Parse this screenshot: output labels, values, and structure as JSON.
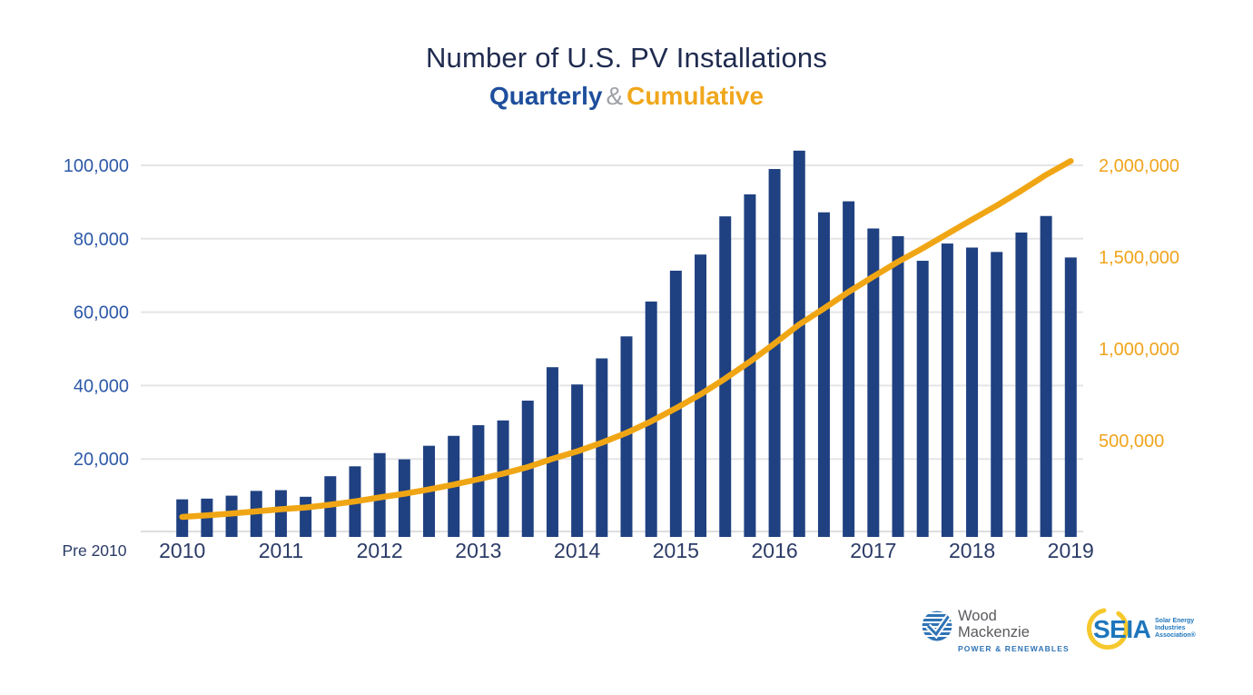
{
  "title": {
    "line1": "Number of U.S. PV Installations",
    "series1_label": "Quarterly",
    "ampersand": "&",
    "series2_label": "Cumulative"
  },
  "colors": {
    "bar": "#1F4181",
    "line": "#F0A614",
    "grid": "#E5E5E8",
    "axis_line": "#DEDEE1",
    "left_axis_text": "#2D59A8",
    "right_axis_text": "#F0A41C",
    "x_axis_text": "#2B3B66",
    "title_text": "#1F2B4F",
    "subtitle_quarterly": "#1E4E9C",
    "subtitle_amp": "#9DA0A6",
    "subtitle_cumulative": "#F0A71C",
    "background": "#FFFFFF"
  },
  "chart_data": {
    "type": "bar+line",
    "title": "Number of U.S. PV Installations",
    "subtitle": "Quarterly & Cumulative",
    "grid": "horizontal",
    "legend_position": "in-title",
    "x": [
      "2010 Q1",
      "2010 Q2",
      "2010 Q3",
      "2010 Q4",
      "2011 Q1",
      "2011 Q2",
      "2011 Q3",
      "2011 Q4",
      "2012 Q1",
      "2012 Q2",
      "2012 Q3",
      "2012 Q4",
      "2013 Q1",
      "2013 Q2",
      "2013 Q3",
      "2013 Q4",
      "2014 Q1",
      "2014 Q2",
      "2014 Q3",
      "2014 Q4",
      "2015 Q1",
      "2015 Q2",
      "2015 Q3",
      "2015 Q4",
      "2016 Q1",
      "2016 Q2",
      "2016 Q3",
      "2016 Q4",
      "2017 Q1",
      "2017 Q2",
      "2017 Q3",
      "2017 Q4",
      "2018 Q1",
      "2018 Q2",
      "2018 Q3",
      "2018 Q4",
      "2019 Q1"
    ],
    "series": [
      {
        "name": "Quarterly",
        "type": "bar",
        "axis": "left",
        "color": "#1F4181",
        "values": [
          9000,
          9200,
          10000,
          11300,
          11500,
          9700,
          15300,
          18000,
          21600,
          19900,
          23600,
          26300,
          29200,
          30500,
          35900,
          45000,
          40300,
          47400,
          53400,
          62900,
          71300,
          75700,
          86100,
          92100,
          99000,
          104000,
          87200,
          90200,
          82800,
          80700,
          74000,
          78700,
          77600,
          76400,
          81700,
          86200,
          74900
        ]
      },
      {
        "name": "Cumulative",
        "type": "line",
        "axis": "right",
        "color": "#F0A614",
        "pre_2010_base": 75000,
        "values": [
          84000,
          93200,
          103200,
          114500,
          126000,
          135700,
          151000,
          169000,
          190600,
          210500,
          234100,
          260400,
          289600,
          320100,
          356000,
          401000,
          441300,
          488700,
          542100,
          605000,
          676300,
          752000,
          838100,
          930200,
          1029200,
          1133200,
          1220400,
          1310600,
          1393400,
          1474100,
          1548100,
          1626800,
          1704400,
          1780800,
          1862500,
          1948700,
          2023600
        ]
      }
    ],
    "left_axis": {
      "ticks": [
        20000,
        40000,
        60000,
        80000,
        100000
      ],
      "tick_labels": [
        "20,000",
        "40,000",
        "60,000",
        "80,000",
        "100,000"
      ],
      "range": [
        0,
        105000
      ]
    },
    "right_axis": {
      "ticks": [
        500000,
        1000000,
        1500000,
        2000000
      ],
      "tick_labels": [
        "500,000",
        "1,000,000",
        "1,500,000",
        "2,000,000"
      ],
      "range": [
        0,
        2100000
      ]
    },
    "x_axis": {
      "pre_label": "Pre 2010",
      "year_labels": [
        "2010",
        "2011",
        "2012",
        "2013",
        "2014",
        "2015",
        "2016",
        "2017",
        "2018",
        "2019"
      ]
    }
  },
  "logos": {
    "wood_mackenzie": {
      "name_line1": "Wood",
      "name_line2": "Mackenzie",
      "tagline": "POWER & RENEWABLES"
    },
    "seia": {
      "acronym": "SEIA",
      "sub_line1": "Solar Energy",
      "sub_line2": "Industries",
      "sub_line3": "Association®"
    }
  }
}
